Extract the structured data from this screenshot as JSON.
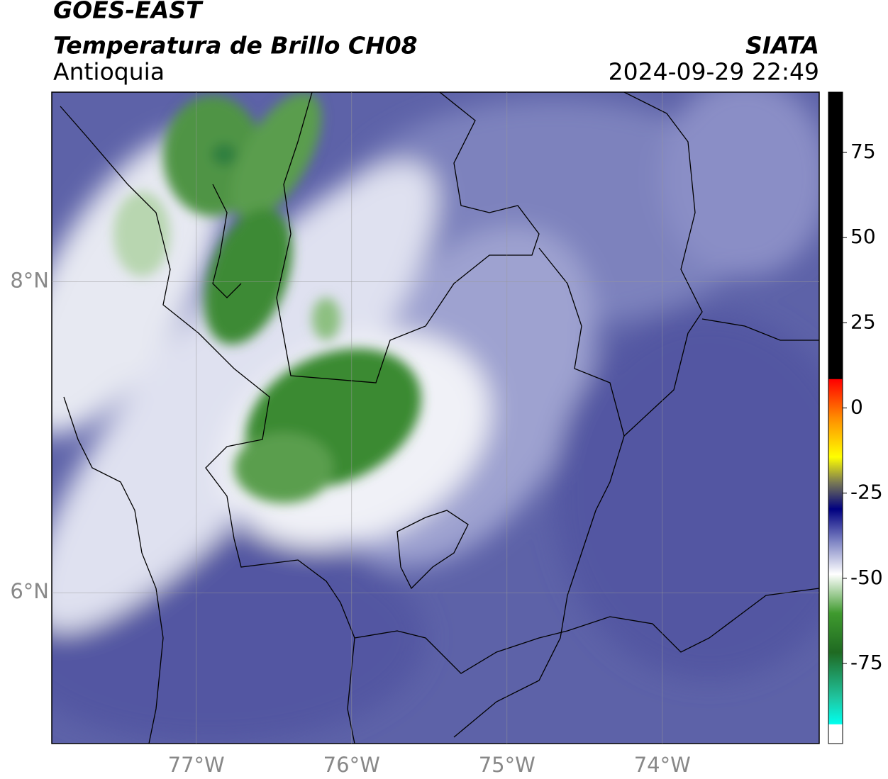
{
  "chart_data": {
    "type": "map",
    "title": "GOES-EAST",
    "subtitle": "Temperatura de Brillo CH08",
    "region": "Antioquia",
    "source": "SIATA",
    "datetime": "2024-09-29 22:49",
    "xlim": [
      -77.93,
      -72.99
    ],
    "ylim": [
      5.03,
      9.22
    ],
    "xticks": [
      {
        "value": -77,
        "label": "77°W"
      },
      {
        "value": -76,
        "label": "76°W"
      },
      {
        "value": -75,
        "label": "75°W"
      },
      {
        "value": -74,
        "label": "74°W"
      }
    ],
    "yticks": [
      {
        "value": 6,
        "label": "6°N"
      },
      {
        "value": 8,
        "label": "8°N"
      }
    ],
    "grid": true,
    "colorbar": {
      "lim": [
        -98.5,
        92.7
      ],
      "ticks": [
        -75,
        -50,
        -25,
        0,
        25,
        50,
        75
      ]
    }
  }
}
